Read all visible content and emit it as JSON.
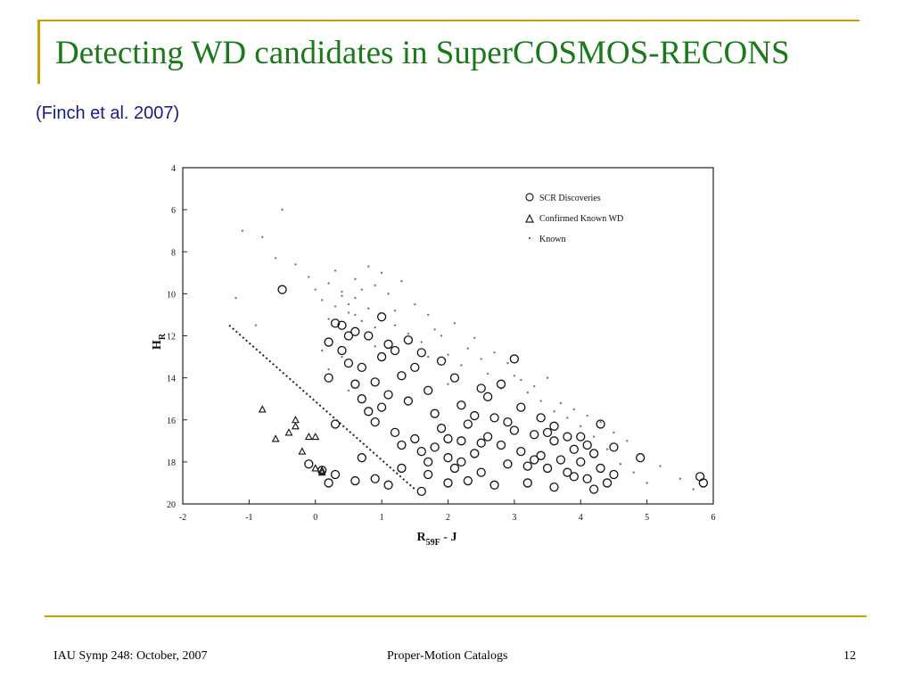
{
  "slide": {
    "title": "Detecting WD candidates in SuperCOSMOS-RECONS",
    "subtitle": "(Finch et al. 2007)",
    "footer_left": "IAU Symp 248: October, 2007",
    "footer_center": "Proper-Motion Catalogs",
    "footer_right": "12"
  },
  "colors": {
    "title": "#1a7a1a",
    "subtitle": "#1a1a8a",
    "accent_rule": "#c8a000"
  },
  "chart_data": {
    "type": "scatter",
    "x_label_main": "R",
    "x_label_sub": "59F",
    "x_label_tail": " - J",
    "y_label_main": "H",
    "y_label_sub": "R",
    "x_range": [
      -2,
      6
    ],
    "y_range": [
      20,
      4
    ],
    "y_inverted": true,
    "x_ticks": [
      "-2",
      "-1",
      "0",
      "1",
      "2",
      "3",
      "4",
      "5",
      "6"
    ],
    "y_ticks": [
      "4",
      "6",
      "8",
      "10",
      "12",
      "14",
      "16",
      "18",
      "20"
    ],
    "legend_position": "top-right",
    "legend": [
      "SCR Discoveries",
      "Confirmed Known WD",
      "Known"
    ],
    "reduced_proper_motion_cut": {
      "style": "dotted",
      "points": [
        [
          -1.3,
          11.5
        ],
        [
          1.5,
          19.3
        ]
      ]
    },
    "series": [
      {
        "name": "SCR Discoveries",
        "marker": "circle",
        "points": [
          [
            -0.5,
            9.8
          ],
          [
            0.2,
            12.3
          ],
          [
            0.3,
            11.4
          ],
          [
            0.4,
            11.5
          ],
          [
            0.6,
            11.8
          ],
          [
            0.8,
            12.0
          ],
          [
            1.0,
            11.1
          ],
          [
            0.4,
            12.7
          ],
          [
            0.5,
            13.3
          ],
          [
            0.2,
            14.0
          ],
          [
            0.6,
            14.3
          ],
          [
            0.7,
            15.0
          ],
          [
            0.8,
            15.6
          ],
          [
            0.9,
            16.1
          ],
          [
            0.3,
            16.2
          ],
          [
            1.0,
            13.0
          ],
          [
            1.1,
            14.8
          ],
          [
            1.2,
            16.6
          ],
          [
            1.3,
            17.2
          ],
          [
            1.5,
            16.9
          ],
          [
            1.6,
            17.5
          ],
          [
            1.7,
            18.0
          ],
          [
            1.8,
            17.3
          ],
          [
            1.9,
            16.4
          ],
          [
            2.0,
            17.8
          ],
          [
            2.1,
            18.3
          ],
          [
            2.2,
            17.0
          ],
          [
            2.3,
            16.2
          ],
          [
            2.4,
            17.6
          ],
          [
            2.5,
            18.5
          ],
          [
            2.6,
            16.8
          ],
          [
            2.7,
            15.9
          ],
          [
            2.8,
            17.2
          ],
          [
            2.9,
            18.1
          ],
          [
            3.0,
            16.5
          ],
          [
            3.1,
            17.5
          ],
          [
            3.2,
            18.2
          ],
          [
            3.3,
            16.7
          ],
          [
            3.4,
            17.7
          ],
          [
            3.5,
            18.3
          ],
          [
            3.6,
            17.0
          ],
          [
            3.7,
            17.9
          ],
          [
            3.8,
            18.5
          ],
          [
            3.9,
            17.4
          ],
          [
            4.0,
            18.0
          ],
          [
            4.1,
            18.8
          ],
          [
            4.2,
            17.6
          ],
          [
            4.3,
            18.3
          ],
          [
            4.4,
            19.0
          ],
          [
            4.5,
            18.6
          ],
          [
            4.5,
            17.3
          ],
          [
            4.3,
            16.2
          ],
          [
            4.0,
            16.8
          ],
          [
            3.0,
            13.1
          ],
          [
            2.8,
            14.3
          ],
          [
            2.5,
            14.5
          ],
          [
            2.2,
            15.3
          ],
          [
            1.5,
            13.5
          ],
          [
            1.6,
            12.8
          ],
          [
            1.4,
            12.2
          ],
          [
            1.2,
            12.7
          ],
          [
            1.9,
            13.2
          ],
          [
            2.1,
            14.0
          ],
          [
            2.4,
            15.8
          ],
          [
            2.6,
            14.9
          ],
          [
            3.4,
            15.9
          ],
          [
            3.6,
            16.3
          ],
          [
            3.8,
            16.8
          ],
          [
            2.0,
            19.0
          ],
          [
            1.6,
            19.4
          ],
          [
            1.1,
            19.1
          ],
          [
            0.9,
            18.8
          ],
          [
            0.7,
            17.8
          ],
          [
            0.6,
            18.9
          ],
          [
            0.3,
            18.6
          ],
          [
            0.2,
            19.0
          ],
          [
            0.1,
            18.4
          ],
          [
            -0.1,
            18.1
          ],
          [
            4.9,
            17.8
          ],
          [
            5.8,
            18.7
          ],
          [
            5.85,
            19.0
          ],
          [
            1.3,
            18.3
          ],
          [
            1.7,
            18.6
          ],
          [
            2.3,
            18.9
          ],
          [
            2.7,
            19.1
          ],
          [
            3.2,
            19.0
          ],
          [
            3.6,
            19.2
          ],
          [
            4.2,
            19.3
          ],
          [
            0.5,
            12.0
          ],
          [
            0.7,
            13.5
          ],
          [
            0.9,
            14.2
          ],
          [
            1.0,
            15.4
          ],
          [
            1.1,
            12.4
          ],
          [
            1.3,
            13.9
          ],
          [
            1.4,
            15.1
          ],
          [
            1.7,
            14.6
          ],
          [
            1.8,
            15.7
          ],
          [
            2.0,
            16.9
          ],
          [
            2.2,
            18.0
          ],
          [
            2.5,
            17.1
          ],
          [
            2.9,
            16.1
          ],
          [
            3.1,
            15.4
          ],
          [
            3.3,
            17.9
          ],
          [
            3.5,
            16.6
          ],
          [
            3.9,
            18.7
          ],
          [
            4.1,
            17.2
          ]
        ]
      },
      {
        "name": "Confirmed Known WD",
        "marker": "triangle",
        "points": [
          [
            -0.8,
            15.5
          ],
          [
            -0.6,
            16.9
          ],
          [
            -0.4,
            16.6
          ],
          [
            -0.3,
            16.0
          ],
          [
            -0.3,
            16.3
          ],
          [
            -0.2,
            17.5
          ],
          [
            -0.1,
            16.8
          ],
          [
            0.0,
            16.8
          ],
          [
            0.0,
            18.3
          ],
          [
            0.1,
            18.5
          ],
          [
            0.1,
            18.4
          ]
        ]
      },
      {
        "name": "Known",
        "marker": "dot",
        "points": [
          [
            -1.1,
            7.0
          ],
          [
            -0.8,
            7.3
          ],
          [
            -0.6,
            8.3
          ],
          [
            -0.5,
            6.0
          ],
          [
            -0.3,
            8.6
          ],
          [
            -0.1,
            9.2
          ],
          [
            0.0,
            9.8
          ],
          [
            0.1,
            10.3
          ],
          [
            0.2,
            9.5
          ],
          [
            0.3,
            10.6
          ],
          [
            0.4,
            9.9
          ],
          [
            0.5,
            10.9
          ],
          [
            0.6,
            10.2
          ],
          [
            0.7,
            11.3
          ],
          [
            0.8,
            10.7
          ],
          [
            0.9,
            11.6
          ],
          [
            1.0,
            9.0
          ],
          [
            1.2,
            10.8
          ],
          [
            1.4,
            11.9
          ],
          [
            1.6,
            12.3
          ],
          [
            1.8,
            11.7
          ],
          [
            2.0,
            12.9
          ],
          [
            2.2,
            13.4
          ],
          [
            2.4,
            12.1
          ],
          [
            2.6,
            13.8
          ],
          [
            2.8,
            14.5
          ],
          [
            3.0,
            13.9
          ],
          [
            3.2,
            14.7
          ],
          [
            3.4,
            15.1
          ],
          [
            3.6,
            15.6
          ],
          [
            3.8,
            15.9
          ],
          [
            4.0,
            16.3
          ],
          [
            4.2,
            16.8
          ],
          [
            4.4,
            17.4
          ],
          [
            4.6,
            18.1
          ],
          [
            4.8,
            18.5
          ],
          [
            5.0,
            19.0
          ],
          [
            5.2,
            18.2
          ],
          [
            5.5,
            18.8
          ],
          [
            5.7,
            19.3
          ],
          [
            -1.2,
            10.2
          ],
          [
            -0.9,
            11.5
          ],
          [
            0.2,
            13.6
          ],
          [
            0.5,
            14.6
          ],
          [
            0.3,
            8.9
          ],
          [
            0.6,
            9.3
          ],
          [
            0.8,
            8.7
          ],
          [
            0.9,
            9.6
          ],
          [
            1.1,
            10.0
          ],
          [
            1.3,
            9.4
          ],
          [
            0.4,
            10.1
          ],
          [
            0.5,
            10.5
          ],
          [
            0.6,
            11.0
          ],
          [
            0.7,
            9.8
          ],
          [
            0.2,
            11.2
          ],
          [
            1.5,
            10.5
          ],
          [
            1.7,
            11.0
          ],
          [
            1.9,
            12.0
          ],
          [
            2.1,
            11.4
          ],
          [
            2.3,
            12.6
          ],
          [
            2.5,
            13.1
          ],
          [
            2.7,
            12.8
          ],
          [
            2.9,
            13.3
          ],
          [
            3.1,
            14.1
          ],
          [
            3.3,
            14.4
          ],
          [
            3.5,
            14.0
          ],
          [
            3.7,
            15.2
          ],
          [
            3.9,
            15.5
          ],
          [
            4.1,
            15.8
          ],
          [
            4.3,
            16.1
          ],
          [
            4.5,
            16.6
          ],
          [
            4.7,
            17.0
          ],
          [
            2.0,
            14.3
          ],
          [
            1.7,
            13.0
          ],
          [
            1.2,
            11.5
          ],
          [
            0.9,
            12.5
          ],
          [
            0.4,
            13.0
          ],
          [
            0.1,
            12.7
          ]
        ]
      }
    ]
  }
}
